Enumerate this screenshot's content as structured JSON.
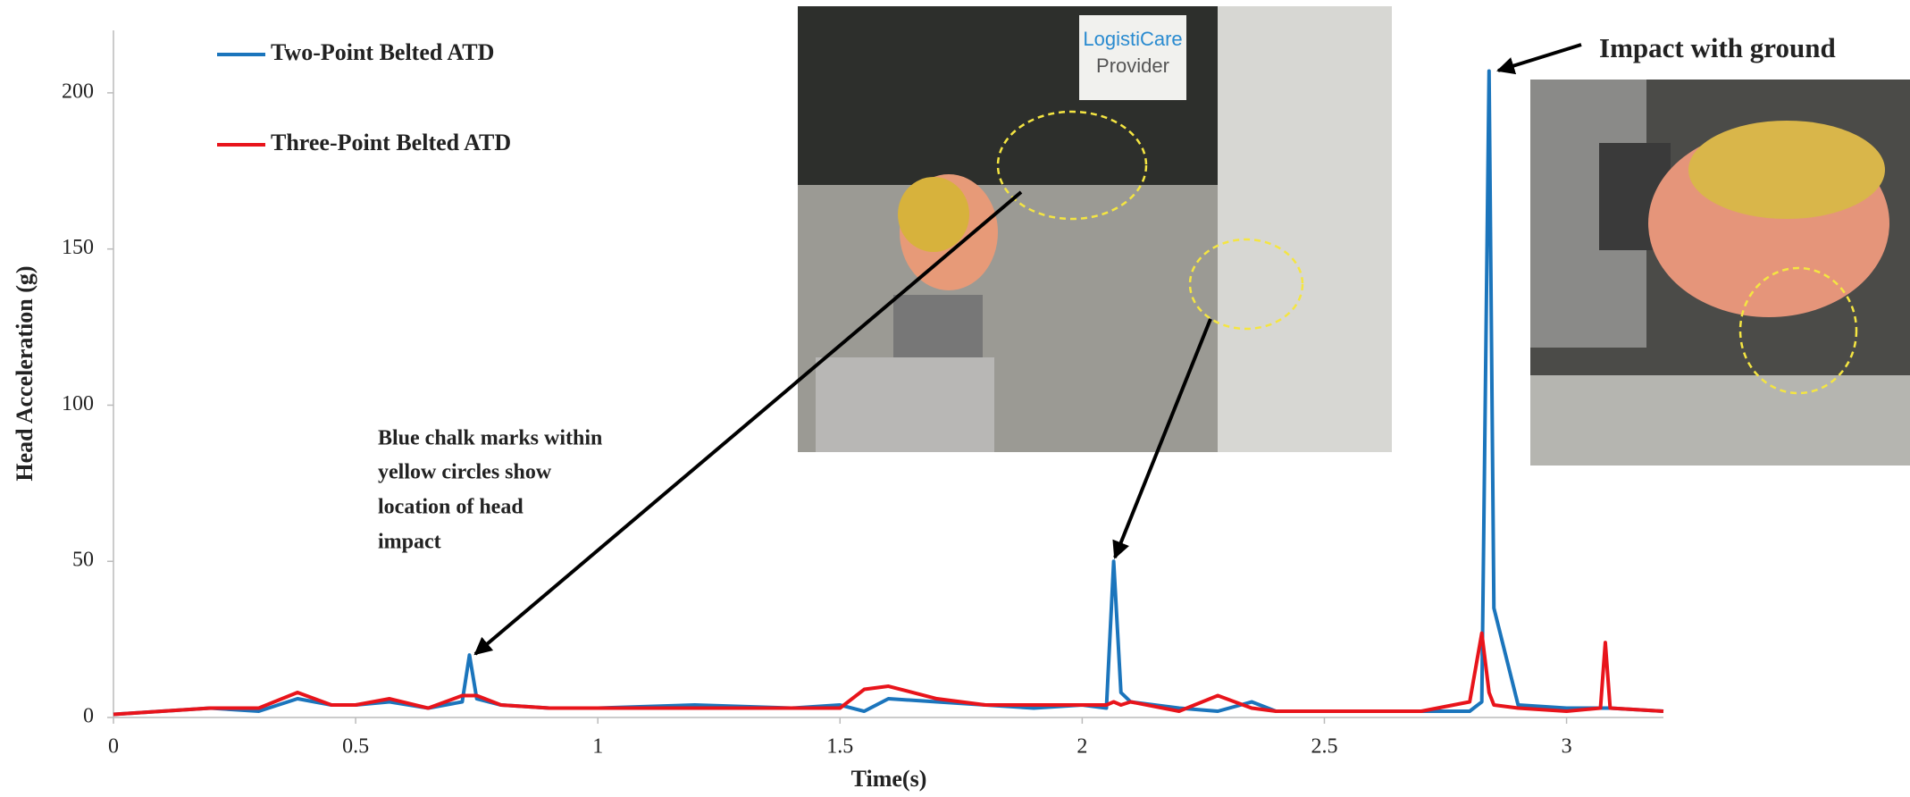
{
  "chart_data": {
    "type": "line",
    "xlabel": "Time(s)",
    "ylabel": "Head Acceleration (g)",
    "x": [
      0,
      0.1,
      0.2,
      0.3,
      0.38,
      0.45,
      0.5,
      0.57,
      0.65,
      0.72,
      0.735,
      0.75,
      0.8,
      0.9,
      1.0,
      1.2,
      1.4,
      1.5,
      1.55,
      1.6,
      1.7,
      1.8,
      1.9,
      2.0,
      2.05,
      2.065,
      2.08,
      2.1,
      2.2,
      2.28,
      2.35,
      2.4,
      2.5,
      2.6,
      2.7,
      2.8,
      2.825,
      2.84,
      2.85,
      2.9,
      3.0,
      3.07,
      3.08,
      3.09,
      3.2
    ],
    "series": [
      {
        "name": "Two-Point Belted ATD",
        "color": "#1b75bc",
        "values": [
          1,
          2,
          3,
          2,
          6,
          4,
          4,
          5,
          3,
          5,
          20,
          6,
          4,
          3,
          3,
          4,
          3,
          4,
          2,
          6,
          5,
          4,
          3,
          4,
          3,
          50,
          8,
          5,
          3,
          2,
          5,
          2,
          2,
          2,
          2,
          2,
          5,
          207,
          35,
          4,
          3,
          3,
          3,
          3,
          2
        ]
      },
      {
        "name": "Three-Point Belted ATD",
        "color": "#e8141b",
        "values": [
          1,
          2,
          3,
          3,
          8,
          4,
          4,
          6,
          3,
          7,
          7,
          7,
          4,
          3,
          3,
          3,
          3,
          3,
          9,
          10,
          6,
          4,
          4,
          4,
          4,
          5,
          4,
          5,
          2,
          7,
          3,
          2,
          2,
          2,
          2,
          5,
          27,
          8,
          4,
          3,
          2,
          3,
          24,
          3,
          2
        ]
      }
    ],
    "xlim": [
      0,
      3.2
    ],
    "xticks": [
      0,
      0.5,
      1,
      1.5,
      2,
      2.5,
      3
    ],
    "ylim": [
      0,
      220
    ],
    "yticks": [
      0,
      50,
      100,
      150,
      200
    ],
    "legend": "upper left",
    "annotations": [
      {
        "lines": [
          "Blue chalk marks within",
          "yellow circles show",
          "location of head",
          "impact"
        ]
      },
      {
        "text": "Impact with ground"
      }
    ],
    "photo_sign": [
      "LogistiCare",
      "Provider"
    ]
  }
}
